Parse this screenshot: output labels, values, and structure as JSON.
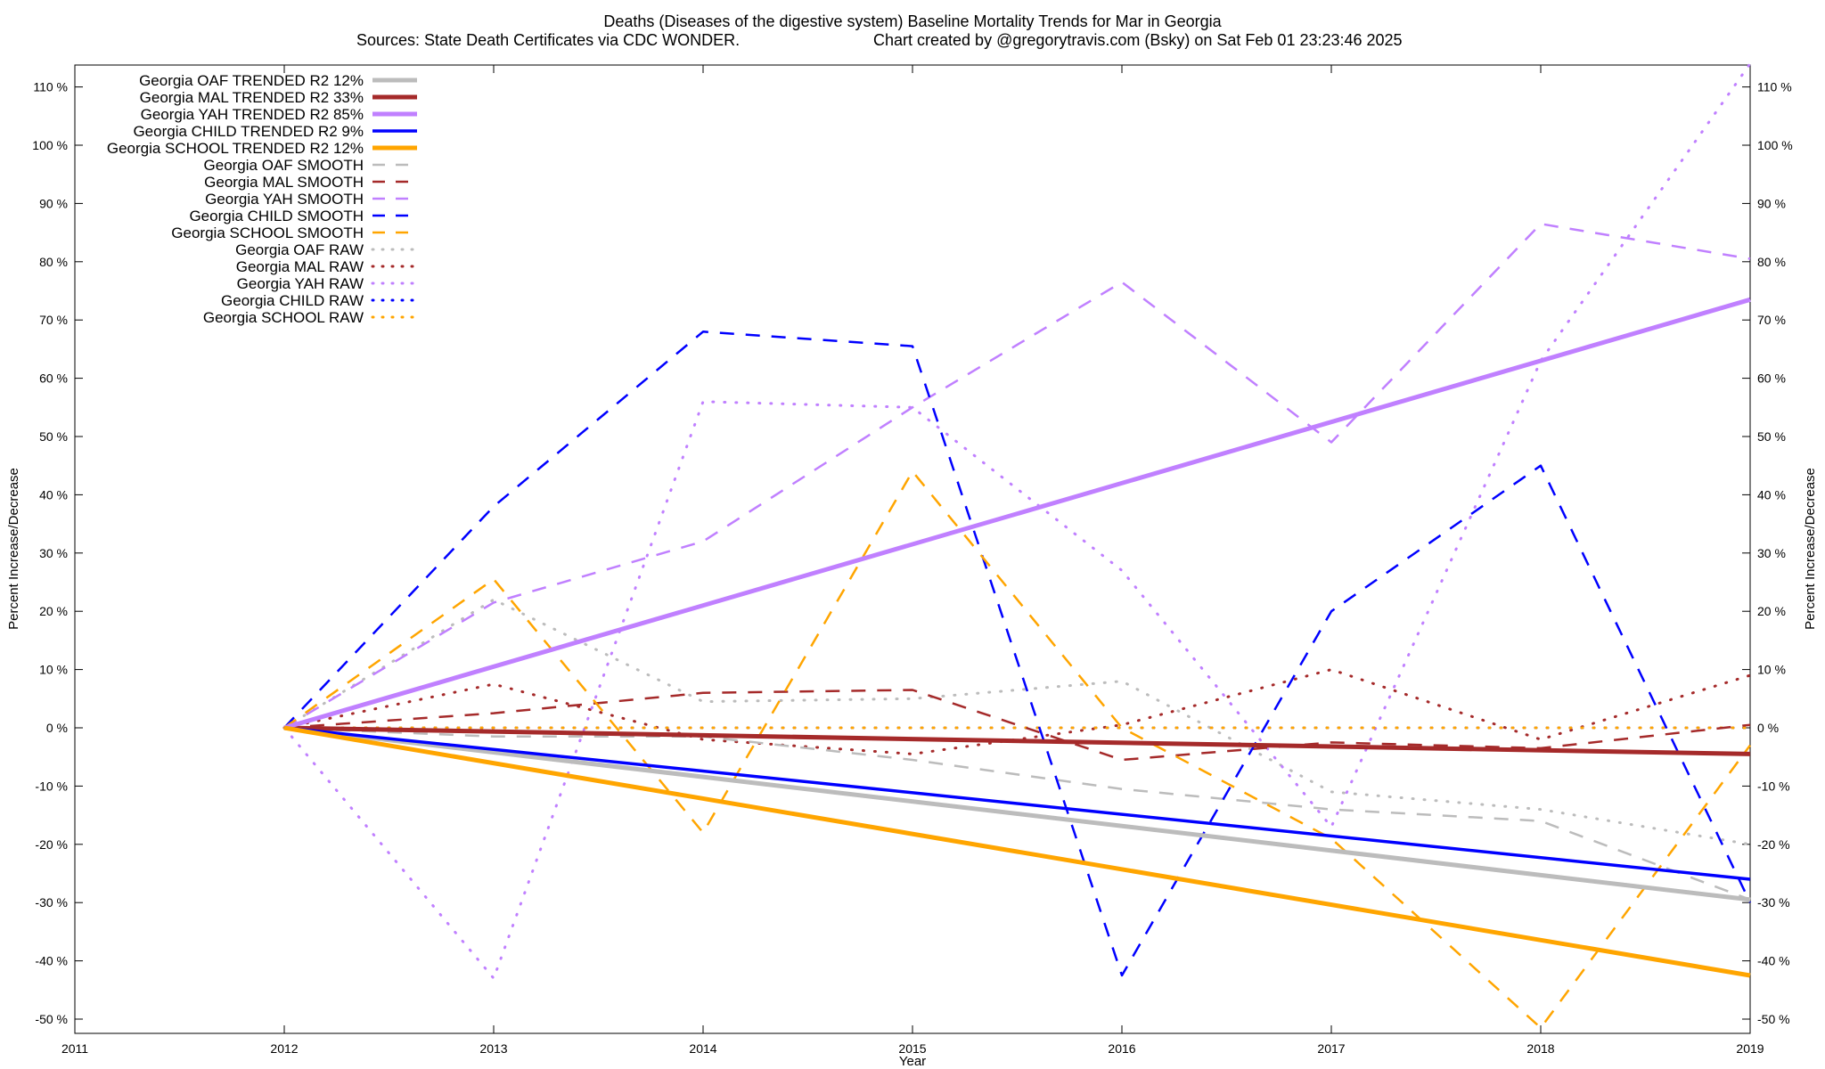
{
  "chart_data": {
    "type": "line",
    "title": "Deaths (Diseases of the digestive system)  Baseline Mortality Trends for Mar in Georgia",
    "subtitle_left": "Sources: State Death Certificates via CDC WONDER.",
    "subtitle_right": "Chart created by @gregorytravis.com (Bsky) on Sat Feb 01 23:23:46 2025",
    "xlabel": "Year",
    "ylabel_left": "Percent Increase/Decrease",
    "ylabel_right": "Percent Increase/Decrease",
    "xlim": [
      2011,
      2019
    ],
    "ylim": [
      -52,
      115
    ],
    "x_ticks": [
      "2011",
      "2012",
      "2013",
      "2014",
      "2015",
      "2016",
      "2017",
      "2018",
      "2019"
    ],
    "y_ticks": [
      "110 %",
      "100 %",
      "90 %",
      "80 %",
      "70 %",
      "60 %",
      "50 %",
      "40 %",
      "30 %",
      "20 %",
      "10 %",
      "0 %",
      "-10 %",
      "-20 %",
      "-30 %",
      "-40 %",
      "-50 %"
    ],
    "grid": false,
    "legend_position": "top-left",
    "series": [
      {
        "name": "Georgia OAF TRENDED R2  12%",
        "style": "trend",
        "color": "#bcbcbc",
        "x": [
          2012,
          2019
        ],
        "values": [
          0,
          -29.5
        ]
      },
      {
        "name": "Georgia MAL TRENDED R2  33%",
        "style": "trend",
        "color": "#a52a2a",
        "x": [
          2012,
          2019
        ],
        "values": [
          0,
          -4.5
        ]
      },
      {
        "name": "Georgia YAH TRENDED R2  85%",
        "style": "trend",
        "color": "#c080ff",
        "x": [
          2012,
          2019
        ],
        "values": [
          0,
          73.5
        ]
      },
      {
        "name": "Georgia CHILD TRENDED R2   9%",
        "style": "trend",
        "color": "#0000ff",
        "x": [
          2012,
          2019
        ],
        "values": [
          0,
          -26
        ]
      },
      {
        "name": "Georgia SCHOOL TRENDED R2  12%",
        "style": "trend",
        "color": "#ffa500",
        "x": [
          2012,
          2019
        ],
        "values": [
          0,
          -42.5
        ]
      },
      {
        "name": "Georgia OAF SMOOTH",
        "style": "smooth",
        "color": "#bcbcbc",
        "x": [
          2012,
          2013,
          2014,
          2015,
          2016,
          2017,
          2018,
          2019
        ],
        "values": [
          0,
          -1.5,
          -1.5,
          -5.5,
          -10.5,
          -14,
          -16,
          -29.5
        ]
      },
      {
        "name": "Georgia MAL SMOOTH",
        "style": "smooth",
        "color": "#a52a2a",
        "x": [
          2012,
          2013,
          2014,
          2015,
          2016,
          2017,
          2018,
          2019
        ],
        "values": [
          0,
          2.5,
          6,
          6.5,
          -5.5,
          -2.5,
          -3.5,
          0.5
        ]
      },
      {
        "name": "Georgia YAH SMOOTH",
        "style": "smooth",
        "color": "#c080ff",
        "x": [
          2012,
          2013,
          2014,
          2015,
          2016,
          2017,
          2018,
          2019
        ],
        "values": [
          0,
          21.5,
          32,
          55,
          76.5,
          49,
          86.5,
          80.5
        ]
      },
      {
        "name": "Georgia CHILD SMOOTH",
        "style": "smooth",
        "color": "#0000ff",
        "x": [
          2012,
          2013,
          2014,
          2015,
          2016,
          2017,
          2018,
          2019
        ],
        "values": [
          0,
          38,
          68,
          65.5,
          -42.5,
          20,
          45,
          -30
        ]
      },
      {
        "name": "Georgia SCHOOL SMOOTH",
        "style": "smooth",
        "color": "#ffa500",
        "x": [
          2012,
          2013,
          2014,
          2015,
          2016,
          2017,
          2018,
          2019
        ],
        "values": [
          0,
          25.5,
          -18,
          44,
          0,
          -19,
          -51.5,
          -3
        ]
      },
      {
        "name": "Georgia OAF RAW",
        "style": "raw",
        "color": "#bcbcbc",
        "x": [
          2012,
          2013,
          2014,
          2015,
          2016,
          2017,
          2018,
          2019
        ],
        "values": [
          0,
          22,
          4.5,
          5,
          8,
          -11,
          -14,
          -20
        ]
      },
      {
        "name": "Georgia MAL RAW",
        "style": "raw",
        "color": "#a52a2a",
        "x": [
          2012,
          2013,
          2014,
          2015,
          2016,
          2017,
          2018,
          2019
        ],
        "values": [
          0,
          7.5,
          -2,
          -4.5,
          0.5,
          10,
          -2,
          9
        ]
      },
      {
        "name": "Georgia YAH RAW",
        "style": "raw",
        "color": "#c080ff",
        "x": [
          2012,
          2013,
          2014,
          2015,
          2016,
          2017,
          2018,
          2019
        ],
        "values": [
          0,
          -43,
          56,
          55,
          27,
          -17,
          63,
          114
        ]
      },
      {
        "name": "Georgia CHILD RAW",
        "style": "raw",
        "color": "#0000ff",
        "x": [
          2012,
          2013,
          2014,
          2015,
          2016,
          2017,
          2018,
          2019
        ],
        "values": [
          0,
          0,
          0,
          0,
          0,
          0,
          0,
          0
        ]
      },
      {
        "name": "Georgia SCHOOL RAW",
        "style": "raw",
        "color": "#ffa500",
        "x": [
          2012,
          2013,
          2014,
          2015,
          2016,
          2017,
          2018,
          2019
        ],
        "values": [
          0,
          0,
          0,
          0,
          0,
          0,
          0,
          0
        ]
      }
    ]
  }
}
